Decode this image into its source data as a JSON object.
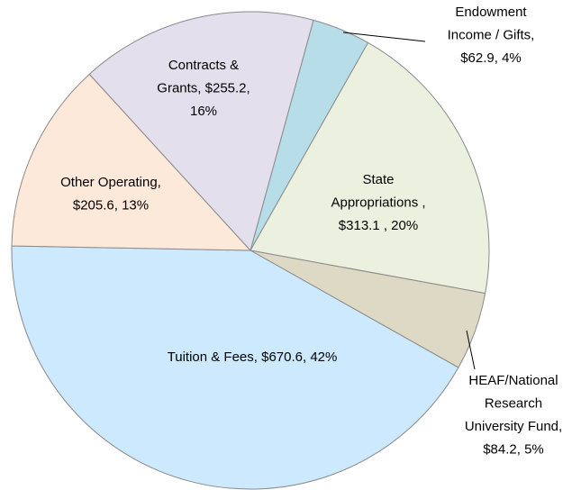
{
  "chart_data": {
    "type": "pie",
    "categories": [
      "Endowment Income / Gifts",
      "State Appropriations",
      "HEAF/National Research University Fund",
      "Tuition & Fees",
      "Other Operating",
      "Contracts & Grants"
    ],
    "values": [
      62.9,
      313.1,
      84.2,
      670.6,
      205.6,
      255.2
    ],
    "value_labels": [
      [
        "Endowment",
        "Income / Gifts,",
        "$62.9, 4%"
      ],
      [
        "State",
        "Appropriations ,",
        "$313.1 , 20%"
      ],
      [
        "HEAF/National",
        "Research",
        "University Fund,",
        "$84.2, 5%"
      ],
      [
        "Tuition & Fees, $670.6, 42%"
      ],
      [
        "Other Operating,",
        "$205.6, 13%"
      ],
      [
        "Contracts &",
        "Grants, $255.2,",
        "16%"
      ]
    ],
    "colors": [
      "#b7dde8",
      "#ebf1de",
      "#ddd9c4",
      "#cce9fd",
      "#fde9d9",
      "#e4dfec"
    ]
  }
}
